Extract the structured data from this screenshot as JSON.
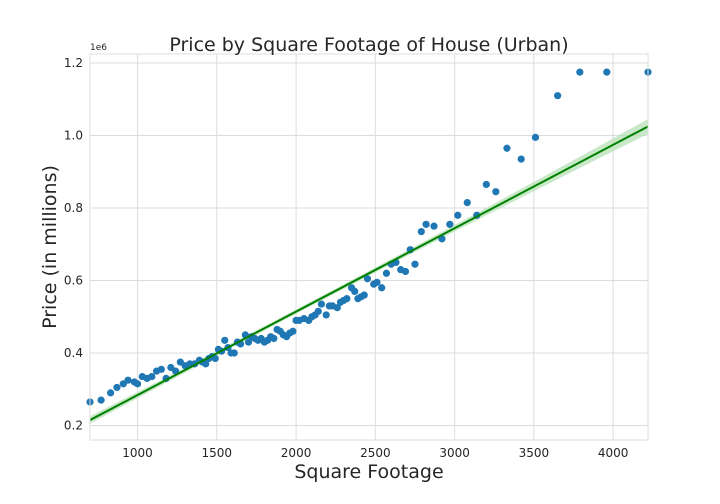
{
  "chart_data": {
    "type": "scatter",
    "title": "Price by Square Footage of House (Urban)",
    "xlabel": "Square Footage",
    "ylabel": "Price (in millions)",
    "y_offset_label": "1e6",
    "xlim": [
      700,
      4220
    ],
    "ylim": [
      160000,
      1225000
    ],
    "x_ticks": [
      1000,
      1500,
      2000,
      2500,
      3000,
      3500,
      4000
    ],
    "y_ticks": [
      200000,
      400000,
      600000,
      800000,
      1000000,
      1200000
    ],
    "y_tick_labels": [
      "0.2",
      "0.4",
      "0.6",
      "0.8",
      "1.0",
      "1.2"
    ],
    "grid": true,
    "colors": {
      "points": "#1f77b4",
      "fit_line": "#008000",
      "confidence_band": "#b6e0b6",
      "grid": "#dcdcdc",
      "frame": "#dcdcdc"
    },
    "series": [
      {
        "kind": "points",
        "x": [
          700,
          770,
          830,
          870,
          910,
          940,
          980,
          1000,
          1030,
          1060,
          1090,
          1120,
          1150,
          1180,
          1210,
          1240,
          1270,
          1300,
          1330,
          1360,
          1390,
          1410,
          1430,
          1450,
          1470,
          1490,
          1510,
          1530,
          1550,
          1570,
          1590,
          1610,
          1630,
          1650,
          1680,
          1700,
          1720,
          1740,
          1760,
          1780,
          1800,
          1820,
          1840,
          1860,
          1880,
          1900,
          1920,
          1940,
          1960,
          1980,
          2000,
          2020,
          2050,
          2080,
          2100,
          2120,
          2140,
          2160,
          2190,
          2210,
          2230,
          2260,
          2280,
          2300,
          2320,
          2350,
          2370,
          2390,
          2410,
          2430,
          2450,
          2490,
          2510,
          2540,
          2570,
          2600,
          2630,
          2660,
          2690,
          2720,
          2750,
          2790,
          2820,
          2870,
          2920,
          2970,
          3020,
          3080,
          3140,
          3200,
          3260,
          3330,
          3420,
          3510,
          3650,
          3790,
          3960,
          4220
        ],
        "y": [
          265000,
          270000,
          290000,
          305000,
          315000,
          325000,
          320000,
          315000,
          335000,
          330000,
          335000,
          350000,
          355000,
          330000,
          360000,
          350000,
          375000,
          365000,
          370000,
          370000,
          380000,
          375000,
          370000,
          385000,
          390000,
          385000,
          410000,
          405000,
          435000,
          415000,
          400000,
          400000,
          430000,
          425000,
          450000,
          430000,
          445000,
          440000,
          435000,
          440000,
          430000,
          435000,
          445000,
          440000,
          465000,
          460000,
          450000,
          445000,
          455000,
          460000,
          490000,
          490000,
          495000,
          490000,
          500000,
          505000,
          515000,
          535000,
          505000,
          530000,
          530000,
          525000,
          540000,
          545000,
          550000,
          580000,
          570000,
          550000,
          555000,
          560000,
          605000,
          590000,
          595000,
          580000,
          620000,
          645000,
          650000,
          630000,
          625000,
          685000,
          645000,
          735000,
          755000,
          750000,
          715000,
          755000,
          780000,
          815000,
          780000,
          865000,
          845000,
          965000,
          935000,
          995000,
          1110000,
          1175000,
          1175000,
          1175000
        ]
      },
      {
        "kind": "regression",
        "x": [
          700,
          4220
        ],
        "y": [
          215000,
          1025000
        ]
      }
    ]
  }
}
